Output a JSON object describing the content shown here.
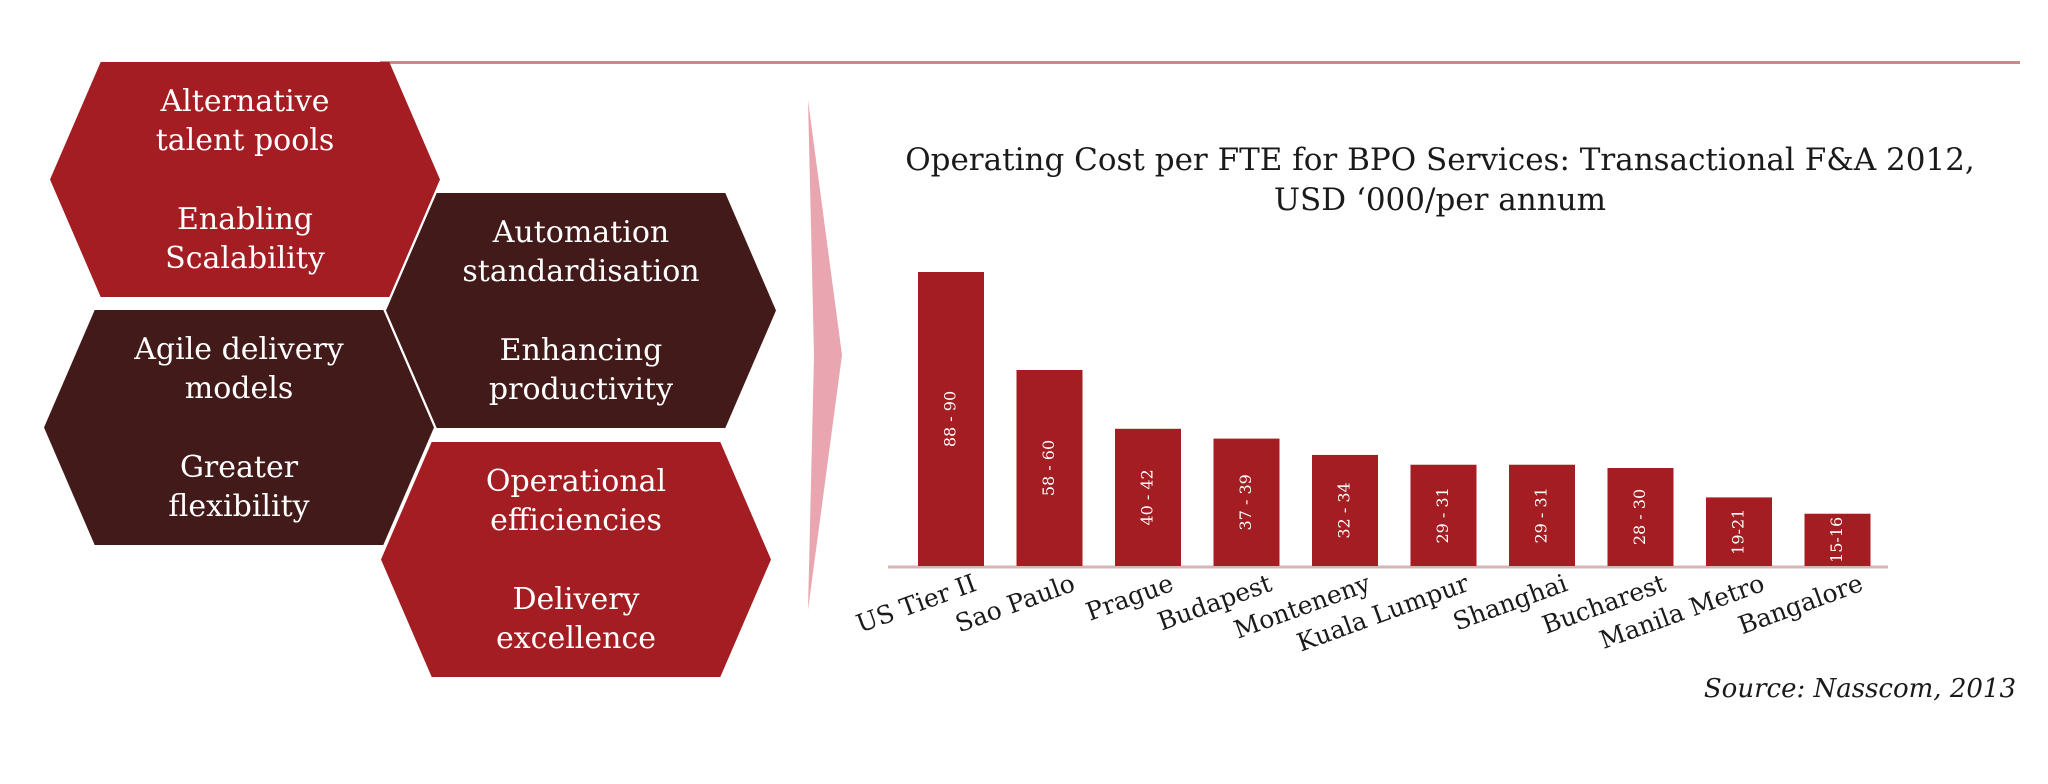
{
  "colors": {
    "red": "#a31d22",
    "dark": "#431a1a",
    "rule": "#c98a8c",
    "chevron": "#e9a6b0",
    "axis": "#d9b3b5"
  },
  "hexagons": [
    {
      "line1": "Alternative",
      "line2": "talent pools",
      "line3": "Enabling",
      "line4": "Scalability",
      "tone": "red"
    },
    {
      "line1": "Automation",
      "line2": "standardisation",
      "line3": "Enhancing",
      "line4": "productivity",
      "tone": "dark"
    },
    {
      "line1": "Agile delivery",
      "line2": "models",
      "line3": "Greater",
      "line4": "flexibility",
      "tone": "dark"
    },
    {
      "line1": "Operational",
      "line2": "efficiencies",
      "line3": "Delivery",
      "line4": "excellence",
      "tone": "red"
    }
  ],
  "chart_data": {
    "type": "bar",
    "title_line1": "Operating Cost per FTE for BPO Services: Transactional F&A 2012,",
    "title_line2": "USD ‘000/per annum",
    "categories": [
      "US Tier II",
      "Sao Paulo",
      "Prague",
      "Budapest",
      "Monteneny",
      "Kuala Lumpur",
      "Shanghai",
      "Bucharest",
      "Manila Metro",
      "Bangalore"
    ],
    "ranges": [
      [
        88,
        90
      ],
      [
        58,
        60
      ],
      [
        40,
        42
      ],
      [
        37,
        39
      ],
      [
        32,
        34
      ],
      [
        29,
        31
      ],
      [
        29,
        31
      ],
      [
        28,
        30
      ],
      [
        19,
        21
      ],
      [
        15,
        16
      ]
    ],
    "data_labels": [
      "88 - 90",
      "58 - 60",
      "40 - 42",
      "37 - 39",
      "32 - 34",
      "29 - 31",
      "29 - 31",
      "28 - 30",
      "19-21",
      "15-16"
    ],
    "ylim": [
      0,
      90
    ],
    "grid": false,
    "legend": "none"
  },
  "source": "Source: Nasscom, 2013"
}
